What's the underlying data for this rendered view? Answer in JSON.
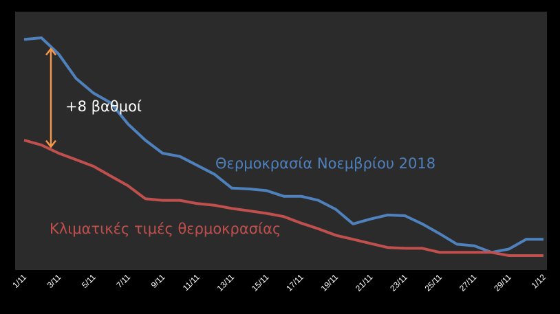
{
  "chart_data": {
    "type": "line",
    "title": "",
    "xlabel": "",
    "ylabel": "",
    "grid": false,
    "legend": "none",
    "x": [
      "1/11",
      "2/11",
      "3/11",
      "4/11",
      "5/11",
      "6/11",
      "7/11",
      "8/11",
      "9/11",
      "10/11",
      "11/11",
      "12/11",
      "13/11",
      "14/11",
      "15/11",
      "16/11",
      "17/11",
      "18/11",
      "19/11",
      "20/11",
      "21/11",
      "22/11",
      "23/11",
      "24/11",
      "25/11",
      "26/11",
      "27/11",
      "28/11",
      "29/11",
      "30/11",
      "1/12"
    ],
    "tick_labels": [
      "1/11",
      "3/11",
      "5/11",
      "7/11",
      "9/11",
      "11/11",
      "13/11",
      "15/11",
      "17/11",
      "19/11",
      "21/11",
      "23/11",
      "25/11",
      "27/11",
      "29/11",
      "1/12"
    ],
    "series": [
      {
        "name": "Θερμοκρασία Νοεμβρίου 2018",
        "color": "#4F81BD",
        "values": [
          26.6,
          26.8,
          24.8,
          21.8,
          20.0,
          18.8,
          16.2,
          14.2,
          12.6,
          12.2,
          11.1,
          10.0,
          8.3,
          8.2,
          8.0,
          7.3,
          7.3,
          6.8,
          5.7,
          3.9,
          4.5,
          5.0,
          4.9,
          3.9,
          2.7,
          1.4,
          1.2,
          0.4,
          0.8,
          2.0,
          2.0
        ]
      },
      {
        "name": "Κλιματικές τιμές θερμοκρασίας",
        "color": "#C0504D",
        "values": [
          14.2,
          13.6,
          12.6,
          11.8,
          11.0,
          9.8,
          8.6,
          7.0,
          6.8,
          6.8,
          6.4,
          6.2,
          5.8,
          5.5,
          5.2,
          4.8,
          4.0,
          3.3,
          2.5,
          2.0,
          1.5,
          1.0,
          0.9,
          0.9,
          0.4,
          0.4,
          0.4,
          0.4,
          0.0,
          0.0,
          0.0
        ]
      }
    ],
    "annotations": [
      {
        "text": "+8 βαθμοί",
        "color": "#F79646",
        "arrow_from_day": "2/11"
      }
    ],
    "series_labels": [
      {
        "text": "Θερμοκρασία Νοεμβρίου 2018",
        "color": "#4F81BD"
      },
      {
        "text": "Κλιματικές τιμές θερμοκρασίας",
        "color": "#C0504D"
      }
    ],
    "plot_background": "#2B2B2B",
    "page_background": "#000000"
  }
}
